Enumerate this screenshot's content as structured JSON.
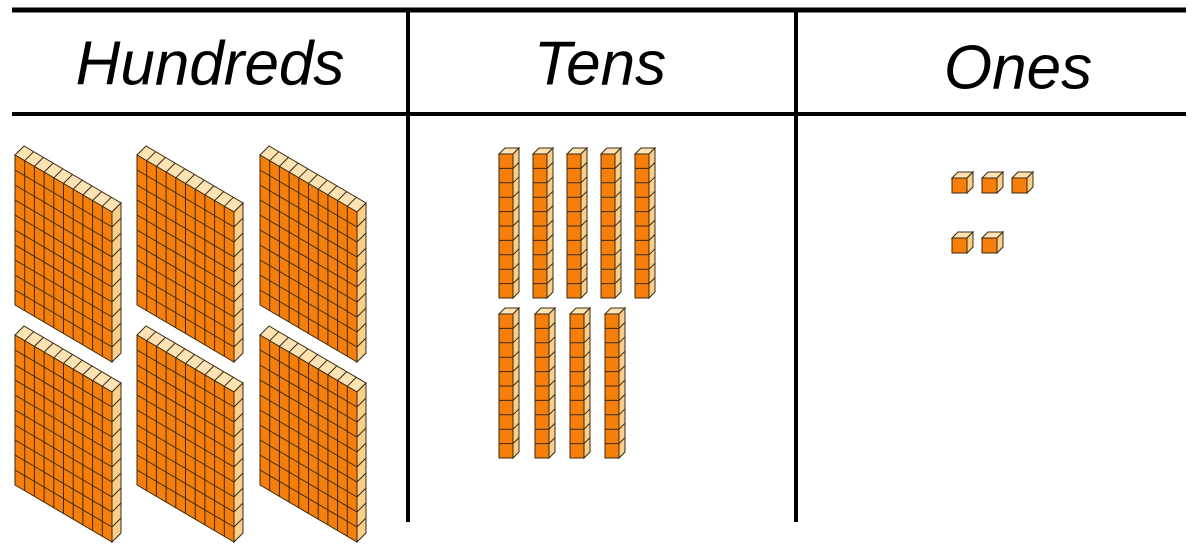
{
  "header": {
    "columns": [
      "Hundreds",
      "Tens",
      "Ones"
    ]
  }
}
